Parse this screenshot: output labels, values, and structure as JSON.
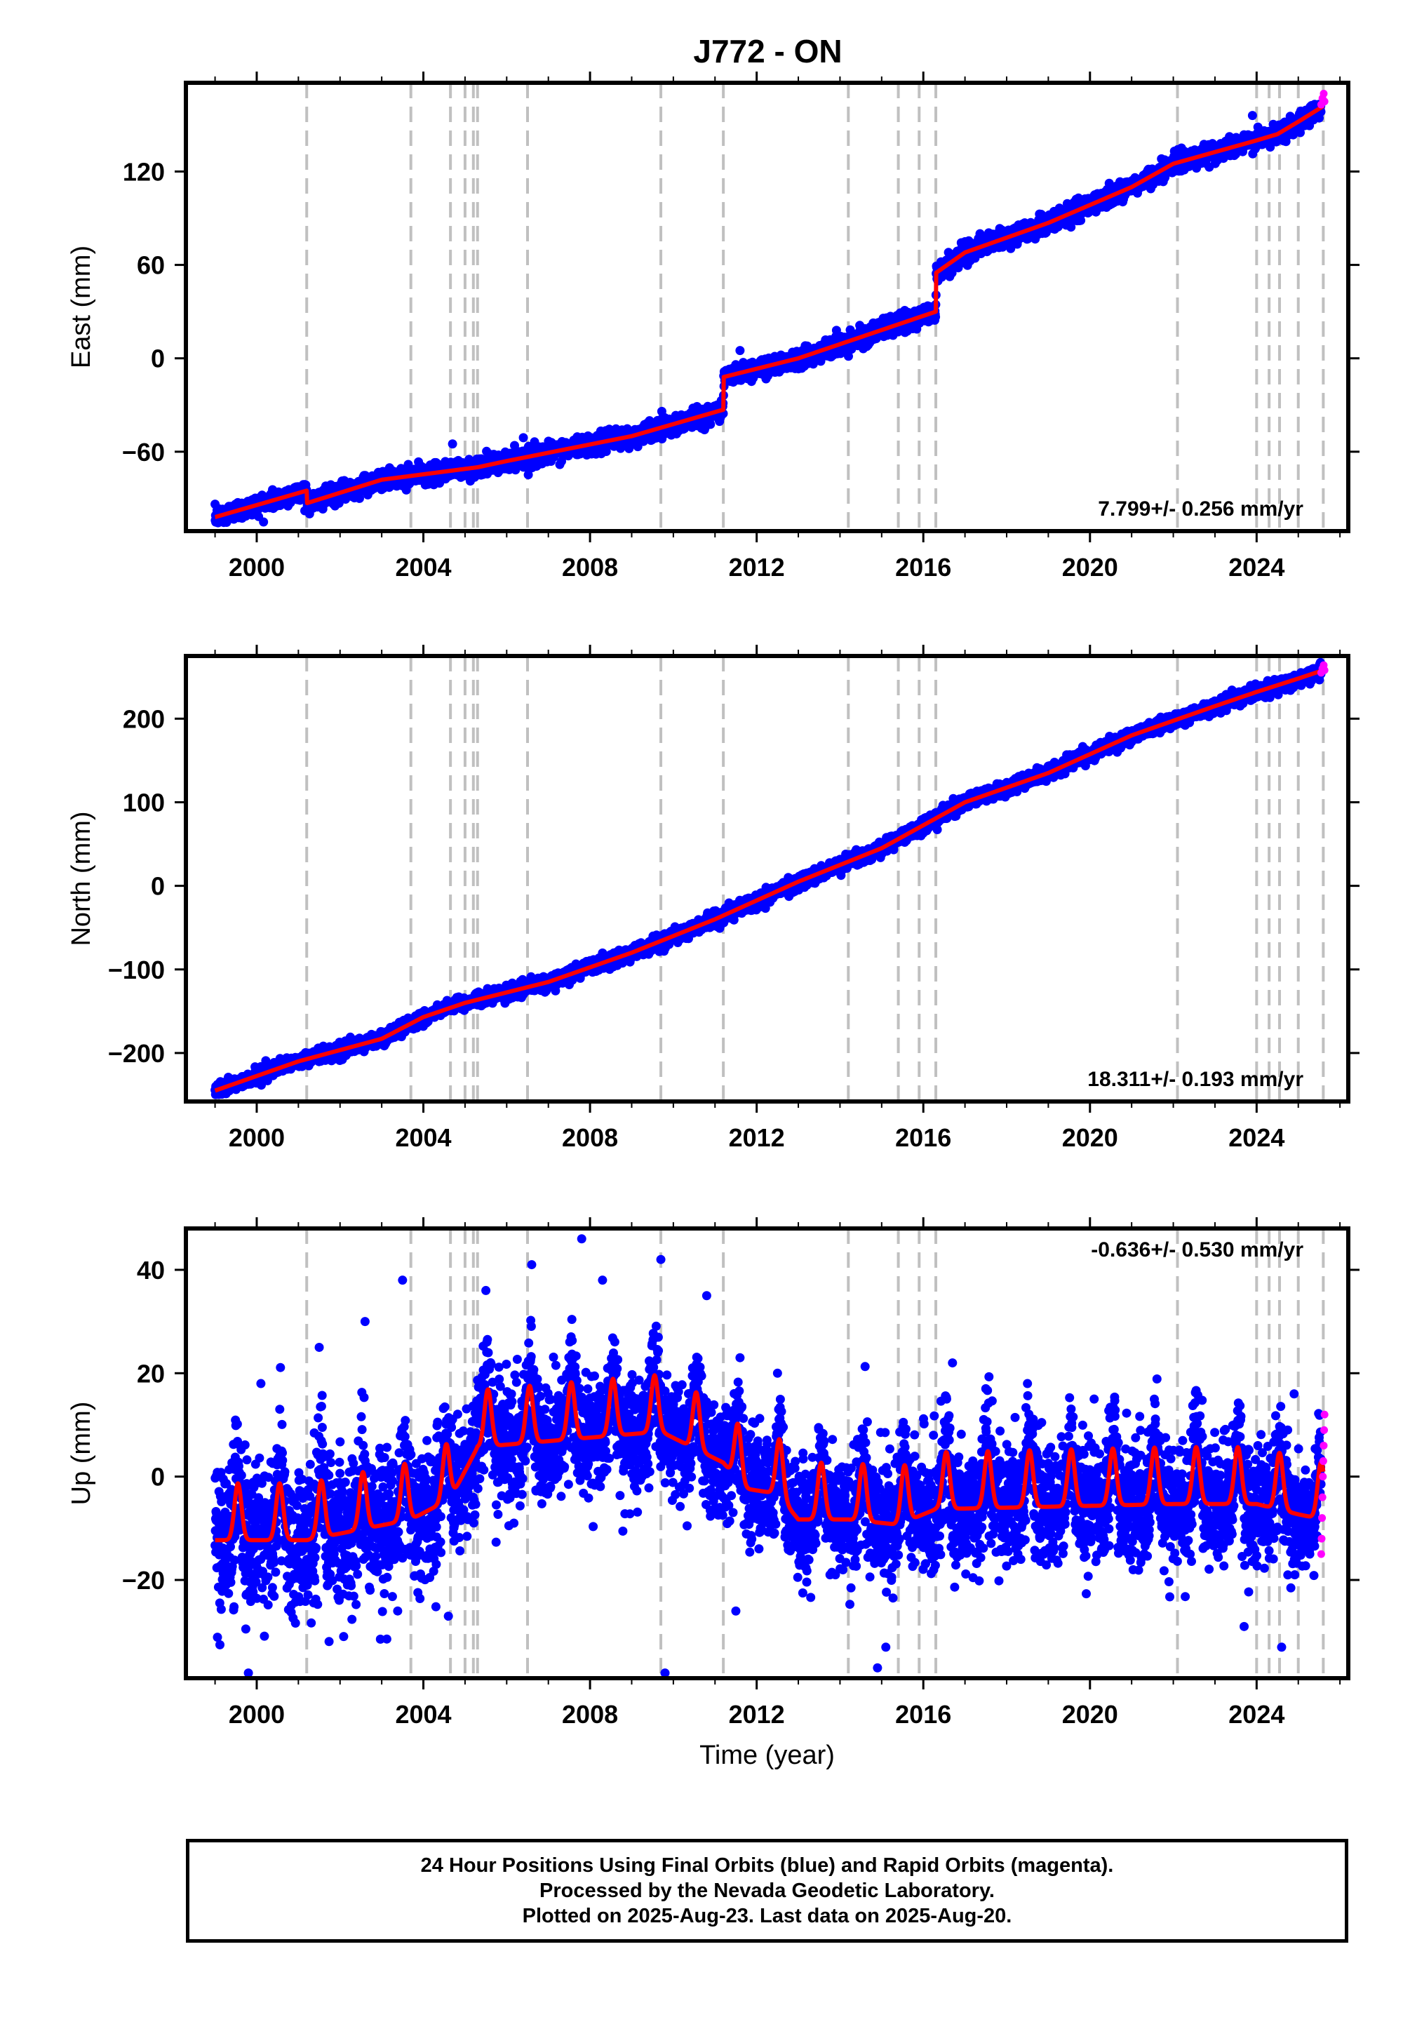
{
  "title": "J772 - ON",
  "footer": {
    "line1": "24 Hour Positions Using Final Orbits (blue) and Rapid Orbits (magenta).",
    "line2": "Processed by the Nevada Geodetic Laboratory.",
    "line3": "Plotted on 2025-Aug-23. Last data on 2025-Aug-20."
  },
  "colors": {
    "final_orbits": "#0000ff",
    "rapid_orbits": "#ff00ff",
    "model": "#ff0000",
    "event_lines": "#c0c0c0",
    "frame": "#000000"
  },
  "chart_data": [
    {
      "type": "scatter",
      "component": "east",
      "ylabel": "East (mm)",
      "xlabel": "",
      "xlim": [
        1998.3,
        2026.2
      ],
      "ylim": [
        -111,
        177
      ],
      "x_ticks": [
        2000,
        2004,
        2008,
        2012,
        2016,
        2020,
        2024
      ],
      "y_ticks": [
        -60,
        0,
        60,
        120
      ],
      "rate_label": "7.799+/- 0.256 mm/yr",
      "event_lines": [
        2001.2,
        2003.7,
        2004.65,
        2005.0,
        2005.2,
        2005.3,
        2006.5,
        2009.7,
        2011.2,
        2014.2,
        2015.4,
        2015.9,
        2016.3,
        2022.1,
        2024.0,
        2024.3,
        2024.55,
        2025.0,
        2025.6
      ],
      "model_line": [
        [
          1999.0,
          -102
        ],
        [
          2001.2,
          -85
        ],
        [
          2001.21,
          -93
        ],
        [
          2003.0,
          -78
        ],
        [
          2005.3,
          -70
        ],
        [
          2006.0,
          -66
        ],
        [
          2009.0,
          -50
        ],
        [
          2011.2,
          -33
        ],
        [
          2011.21,
          -12
        ],
        [
          2013.0,
          0
        ],
        [
          2016.3,
          30
        ],
        [
          2016.31,
          55
        ],
        [
          2017.0,
          68
        ],
        [
          2019.0,
          87
        ],
        [
          2021.0,
          110
        ],
        [
          2022.0,
          125
        ],
        [
          2024.0,
          140
        ],
        [
          2024.5,
          144
        ],
        [
          2025.0,
          152
        ],
        [
          2025.6,
          162
        ]
      ],
      "scatter_spread_mm": 3,
      "outliers": [
        [
          2004.7,
          -55
        ],
        [
          2006.4,
          -51
        ],
        [
          2011.6,
          5
        ],
        [
          2023.9,
          156
        ]
      ],
      "rapid_points": [
        [
          2025.55,
          163
        ],
        [
          2025.58,
          167
        ],
        [
          2025.61,
          170
        ],
        [
          2025.63,
          165
        ]
      ]
    },
    {
      "type": "scatter",
      "component": "north",
      "ylabel": "North (mm)",
      "xlabel": "",
      "xlim": [
        1998.3,
        2026.2
      ],
      "ylim": [
        -258,
        275
      ],
      "x_ticks": [
        2000,
        2004,
        2008,
        2012,
        2016,
        2020,
        2024
      ],
      "y_ticks": [
        -200,
        -100,
        0,
        100,
        200
      ],
      "rate_label": "18.311+/- 0.193 mm/yr",
      "event_lines": [
        2001.2,
        2003.7,
        2004.65,
        2005.0,
        2005.2,
        2005.3,
        2006.5,
        2009.7,
        2011.2,
        2014.2,
        2015.4,
        2015.9,
        2016.3,
        2022.1,
        2024.0,
        2024.3,
        2024.55,
        2025.0,
        2025.6
      ],
      "model_line": [
        [
          1999.0,
          -245
        ],
        [
          2001.0,
          -210
        ],
        [
          2003.0,
          -183
        ],
        [
          2004.0,
          -157
        ],
        [
          2005.0,
          -140
        ],
        [
          2007.0,
          -115
        ],
        [
          2009.0,
          -80
        ],
        [
          2011.0,
          -40
        ],
        [
          2013.0,
          5
        ],
        [
          2015.0,
          45
        ],
        [
          2017.0,
          100
        ],
        [
          2019.0,
          135
        ],
        [
          2021.0,
          180
        ],
        [
          2023.0,
          215
        ],
        [
          2024.0,
          232
        ],
        [
          2025.0,
          248
        ],
        [
          2025.6,
          258
        ]
      ],
      "scatter_spread_mm": 4,
      "outliers": [],
      "rapid_points": [
        [
          2025.55,
          255
        ],
        [
          2025.58,
          260
        ],
        [
          2025.61,
          264
        ],
        [
          2025.63,
          258
        ]
      ]
    },
    {
      "type": "scatter",
      "component": "up",
      "ylabel": "Up (mm)",
      "xlabel": "Time (year)",
      "xlim": [
        1998.3,
        2026.2
      ],
      "ylim": [
        -39,
        48
      ],
      "x_ticks": [
        2000,
        2004,
        2008,
        2012,
        2016,
        2020,
        2024
      ],
      "y_ticks": [
        -20,
        0,
        20,
        40
      ],
      "rate_label": "-0.636+/- 0.530 mm/yr",
      "event_lines": [
        2001.2,
        2003.7,
        2004.65,
        2005.0,
        2005.2,
        2005.3,
        2006.5,
        2009.7,
        2011.2,
        2014.2,
        2015.4,
        2015.9,
        2016.3,
        2022.1,
        2024.0,
        2024.3,
        2024.55,
        2025.0,
        2025.6
      ],
      "model_offsets": [
        [
          1999.0,
          -9
        ],
        [
          2001.2,
          -9
        ],
        [
          2003.7,
          -5
        ],
        [
          2004.65,
          -1
        ],
        [
          2005.3,
          9
        ],
        [
          2009.7,
          12
        ],
        [
          2011.2,
          6
        ],
        [
          2011.7,
          1
        ],
        [
          2012.5,
          0
        ],
        [
          2013.0,
          -5
        ],
        [
          2014.2,
          -5
        ],
        [
          2015.4,
          -6
        ],
        [
          2016.3,
          -3
        ],
        [
          2022.1,
          -2
        ],
        [
          2024.0,
          -2
        ],
        [
          2025.0,
          -4
        ],
        [
          2025.6,
          -5
        ]
      ],
      "seasonal_amplitude_mm": 5.5,
      "scatter_spread_mm": 5.5,
      "outliers": [
        [
          1999.8,
          -38
        ],
        [
          2000.1,
          18
        ],
        [
          2001.5,
          25
        ],
        [
          2002.6,
          30
        ],
        [
          2003.5,
          38
        ],
        [
          2004.6,
          -27
        ],
        [
          2005.5,
          36
        ],
        [
          2006.6,
          41
        ],
        [
          2007.8,
          46
        ],
        [
          2008.3,
          38
        ],
        [
          2009.8,
          -38
        ],
        [
          2009.7,
          42
        ],
        [
          2010.8,
          35
        ],
        [
          2011.6,
          23
        ],
        [
          2011.5,
          -26
        ],
        [
          2012.5,
          20
        ],
        [
          2014.9,
          -37
        ],
        [
          2015.1,
          -33
        ],
        [
          2016.7,
          22
        ],
        [
          2017.5,
          17
        ],
        [
          2018.5,
          18
        ],
        [
          2020.1,
          15
        ],
        [
          2023.7,
          -29
        ],
        [
          2024.6,
          -33
        ],
        [
          2024.9,
          16
        ]
      ],
      "rapid_points": [
        [
          2025.55,
          -15
        ],
        [
          2025.56,
          -12
        ],
        [
          2025.57,
          -8
        ],
        [
          2025.58,
          -4
        ],
        [
          2025.59,
          0
        ],
        [
          2025.6,
          3
        ],
        [
          2025.61,
          6
        ],
        [
          2025.62,
          9
        ],
        [
          2025.63,
          12
        ]
      ]
    }
  ]
}
